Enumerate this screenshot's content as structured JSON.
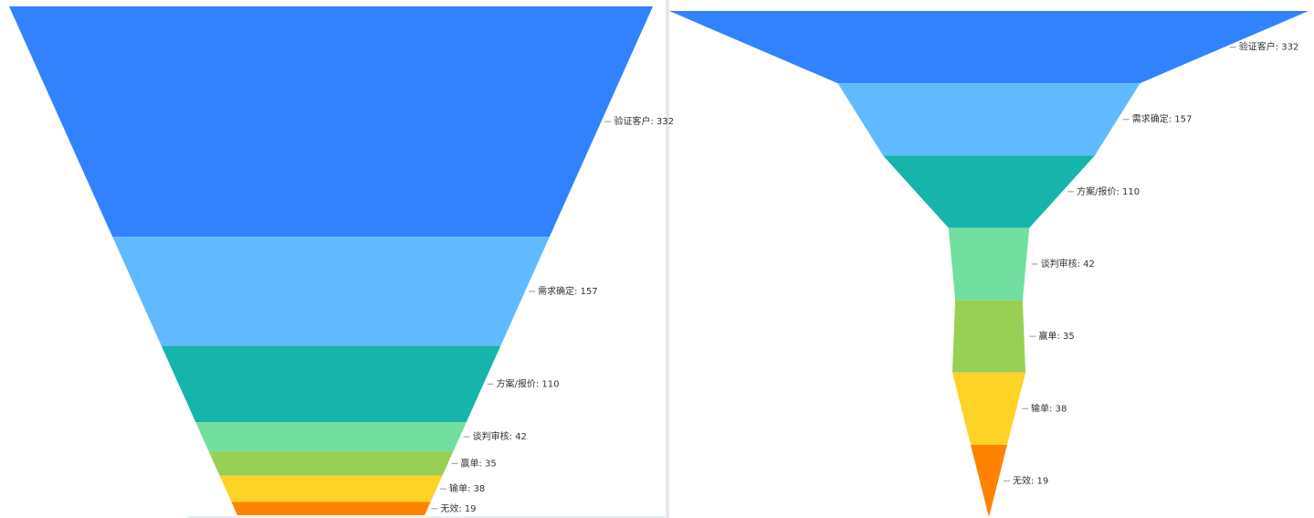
{
  "chart_data": [
    {
      "type": "funnel",
      "sizing": "height",
      "value_labels": [
        "验证客户: 332",
        "需求确定: 157",
        "方案/报价: 110",
        "谈判审核: 42",
        "赢单: 35",
        "输单: 38",
        "无效: 19"
      ],
      "values": [
        332,
        157,
        110,
        42,
        35,
        38,
        19
      ],
      "colors": [
        "#3282ff",
        "#61baff",
        "#16b4ab",
        "#72dea0",
        "#98cf55",
        "#ffd228",
        "#ff8200"
      ]
    },
    {
      "type": "funnel",
      "sizing": "width",
      "value_labels": [
        "验证客户: 332",
        "需求确定: 157",
        "方案/报价: 110",
        "谈判审核: 42",
        "赢单: 35",
        "输单: 38",
        "无效: 19"
      ],
      "values": [
        332,
        157,
        110,
        42,
        35,
        38,
        19
      ],
      "colors": [
        "#3282ff",
        "#61baff",
        "#16b4ab",
        "#72dea0",
        "#98cf55",
        "#ffd228",
        "#ff8200"
      ]
    }
  ]
}
